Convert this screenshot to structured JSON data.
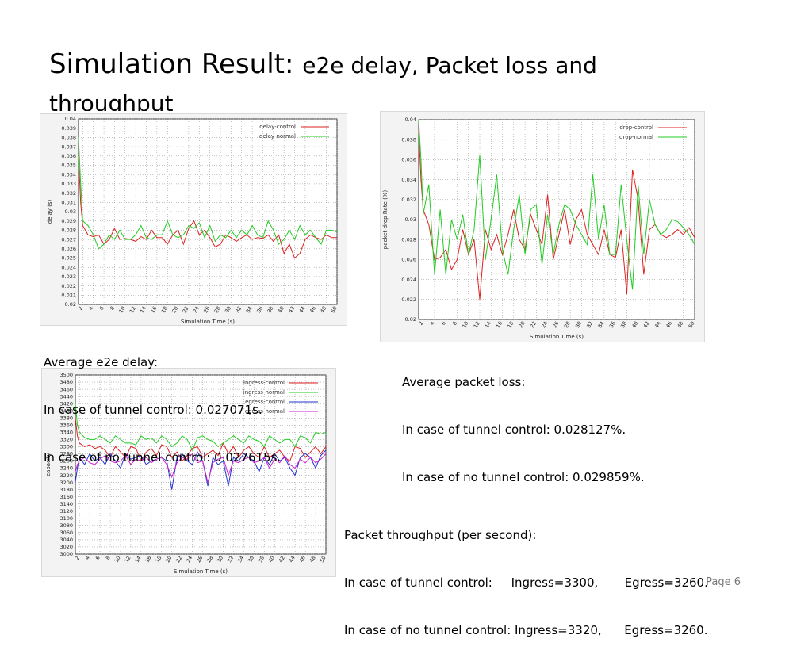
{
  "slide": {
    "title_main": "Simulation Result:",
    "title_sub": "e2e delay, Packet loss and throughput",
    "page_label": "Page 6"
  },
  "captions": {
    "delay": [
      "Average e2e delay:",
      "In case of tunnel control: 0.027071s.",
      "In case of no tunnel control: 0.027615s."
    ],
    "loss": [
      "Average packet loss:",
      "In case of tunnel control: 0.028127%.",
      "In case of no tunnel control: 0.029859%."
    ],
    "throughput": [
      "Packet throughput (per second):",
      "In case of tunnel control:     Ingress=3300,       Egress=3260.",
      "In case of no tunnel control: Ingress=3320,      Egress=3260."
    ]
  },
  "chart_data": [
    {
      "type": "line",
      "xlabel": "Simulation Time (s)",
      "ylabel": "delay (s)",
      "xlim": [
        2,
        50
      ],
      "ylim": [
        0.02,
        0.04
      ],
      "yticks": [
        0.02,
        0.021,
        0.022,
        0.023,
        0.024,
        0.025,
        0.026,
        0.027,
        0.028,
        0.029,
        0.03,
        0.031,
        0.032,
        0.033,
        0.034,
        0.035,
        0.036,
        0.037,
        0.038,
        0.039,
        0.04
      ],
      "xticks": [
        2,
        4,
        6,
        8,
        10,
        12,
        14,
        16,
        18,
        20,
        22,
        24,
        26,
        28,
        30,
        32,
        34,
        36,
        38,
        40,
        42,
        44,
        46,
        48,
        50
      ],
      "legend_position": "top-right",
      "series": [
        {
          "name": "delay-control",
          "color": "#dd2222",
          "x": [
            1.2,
            1.6,
            2,
            3,
            4,
            5,
            6,
            7,
            8,
            9,
            10,
            11,
            12,
            13,
            14,
            15,
            16,
            17,
            18,
            19,
            20,
            21,
            22,
            23,
            24,
            25,
            26,
            27,
            28,
            29,
            30,
            31,
            32,
            33,
            34,
            35,
            36,
            37,
            38,
            39,
            40,
            41,
            42,
            43,
            44,
            45,
            46,
            47,
            48,
            49,
            50
          ],
          "values": [
            0.036,
            0.031,
            0.0285,
            0.0275,
            0.0273,
            0.0275,
            0.0265,
            0.027,
            0.0282,
            0.027,
            0.0271,
            0.027,
            0.0268,
            0.0273,
            0.027,
            0.028,
            0.0272,
            0.0272,
            0.0265,
            0.0275,
            0.028,
            0.0265,
            0.0282,
            0.029,
            0.0275,
            0.028,
            0.0272,
            0.0262,
            0.0265,
            0.0275,
            0.0272,
            0.0268,
            0.0272,
            0.0275,
            0.027,
            0.0272,
            0.0271,
            0.0275,
            0.0268,
            0.0275,
            0.0255,
            0.0265,
            0.025,
            0.0255,
            0.027,
            0.0275,
            0.0272,
            0.027,
            0.0275,
            0.0272,
            0.0272
          ]
        },
        {
          "name": "delay-normal",
          "color": "#22cc22",
          "x": [
            1.2,
            1.6,
            2,
            3,
            4,
            5,
            6,
            7,
            8,
            9,
            10,
            11,
            12,
            13,
            14,
            15,
            16,
            17,
            18,
            19,
            20,
            21,
            22,
            23,
            24,
            25,
            26,
            27,
            28,
            29,
            30,
            31,
            32,
            33,
            34,
            35,
            36,
            37,
            38,
            39,
            40,
            41,
            42,
            43,
            44,
            45,
            46,
            47,
            48,
            49,
            50
          ],
          "values": [
            0.038,
            0.033,
            0.029,
            0.0285,
            0.0275,
            0.026,
            0.0265,
            0.0275,
            0.027,
            0.028,
            0.027,
            0.027,
            0.0275,
            0.0285,
            0.0272,
            0.027,
            0.0275,
            0.0275,
            0.029,
            0.0275,
            0.0272,
            0.0275,
            0.0285,
            0.0282,
            0.0288,
            0.0272,
            0.0285,
            0.0268,
            0.0275,
            0.0272,
            0.028,
            0.0272,
            0.028,
            0.0275,
            0.0285,
            0.0275,
            0.0272,
            0.029,
            0.028,
            0.0265,
            0.027,
            0.028,
            0.027,
            0.0285,
            0.0275,
            0.028,
            0.0272,
            0.0265,
            0.028,
            0.028,
            0.0278
          ]
        }
      ]
    },
    {
      "type": "line",
      "xlabel": "Simulation Time (s)",
      "ylabel": "packet-drop Rate (%)",
      "xlim": [
        2,
        50
      ],
      "ylim": [
        0.02,
        0.04
      ],
      "yticks": [
        0.02,
        0.022,
        0.024,
        0.026,
        0.028,
        0.03,
        0.032,
        0.034,
        0.036,
        0.038,
        0.04
      ],
      "xticks": [
        2,
        4,
        6,
        8,
        10,
        12,
        14,
        16,
        18,
        20,
        22,
        24,
        26,
        28,
        30,
        32,
        34,
        36,
        38,
        40,
        42,
        44,
        46,
        48,
        50
      ],
      "legend_position": "top-right",
      "series": [
        {
          "name": "drop-control",
          "color": "#dd2222",
          "x": [
            1.2,
            1.6,
            2,
            3,
            4,
            5,
            6,
            7,
            8,
            9,
            10,
            11,
            12,
            13,
            14,
            15,
            16,
            17,
            18,
            19,
            20,
            21,
            22,
            23,
            24,
            25,
            26,
            27,
            28,
            29,
            30,
            31,
            32,
            33,
            34,
            35,
            36,
            37,
            38,
            39,
            40,
            41,
            42,
            43,
            44,
            45,
            46,
            47,
            48,
            49,
            50
          ],
          "values": [
            0.039,
            0.034,
            0.031,
            0.0295,
            0.026,
            0.0262,
            0.027,
            0.025,
            0.026,
            0.029,
            0.0265,
            0.028,
            0.022,
            0.029,
            0.027,
            0.0285,
            0.0265,
            0.0285,
            0.031,
            0.028,
            0.027,
            0.0305,
            0.029,
            0.0275,
            0.0325,
            0.026,
            0.0285,
            0.031,
            0.0275,
            0.03,
            0.031,
            0.0285,
            0.0275,
            0.0265,
            0.029,
            0.0265,
            0.0262,
            0.029,
            0.0225,
            0.035,
            0.032,
            0.0245,
            0.029,
            0.0295,
            0.0285,
            0.0282,
            0.0285,
            0.029,
            0.0285,
            0.0292,
            0.0282
          ]
        },
        {
          "name": "drop-normal",
          "color": "#22cc22",
          "x": [
            1.2,
            1.6,
            2,
            3,
            4,
            5,
            6,
            7,
            8,
            9,
            10,
            11,
            12,
            13,
            14,
            15,
            16,
            17,
            18,
            19,
            20,
            21,
            22,
            23,
            24,
            25,
            26,
            27,
            28,
            29,
            30,
            31,
            32,
            33,
            34,
            35,
            36,
            37,
            38,
            39,
            40,
            41,
            42,
            43,
            44,
            45,
            46,
            47,
            48,
            49,
            50
          ],
          "values": [
            0.04,
            0.036,
            0.0305,
            0.0335,
            0.0245,
            0.031,
            0.0245,
            0.03,
            0.028,
            0.0305,
            0.0265,
            0.029,
            0.0365,
            0.026,
            0.03,
            0.0345,
            0.027,
            0.0245,
            0.029,
            0.0325,
            0.0265,
            0.031,
            0.0315,
            0.0255,
            0.0305,
            0.0265,
            0.0295,
            0.0315,
            0.031,
            0.0295,
            0.0285,
            0.0275,
            0.0345,
            0.028,
            0.0315,
            0.0265,
            0.0265,
            0.0335,
            0.028,
            0.023,
            0.0335,
            0.0265,
            0.032,
            0.0295,
            0.0285,
            0.029,
            0.03,
            0.0298,
            0.0292,
            0.0285,
            0.0275
          ]
        }
      ]
    },
    {
      "type": "line",
      "xlabel": "Simulation Time (s)",
      "ylabel": "capacity",
      "xlim": [
        2,
        50
      ],
      "ylim": [
        3000,
        3500
      ],
      "yticks": [
        3000,
        3020,
        3040,
        3060,
        3080,
        3100,
        3120,
        3140,
        3160,
        3180,
        3200,
        3220,
        3240,
        3260,
        3280,
        3300,
        3320,
        3340,
        3360,
        3380,
        3400,
        3420,
        3440,
        3460,
        3480,
        3500
      ],
      "xticks": [
        2,
        4,
        6,
        8,
        10,
        12,
        14,
        16,
        18,
        20,
        22,
        24,
        26,
        28,
        30,
        32,
        34,
        36,
        38,
        40,
        42,
        44,
        46,
        48,
        50
      ],
      "legend_position": "top-right",
      "series": [
        {
          "name": "ingress-control",
          "color": "#dd2222",
          "x": [
            1.2,
            1.6,
            2,
            3,
            4,
            5,
            6,
            7,
            8,
            9,
            10,
            11,
            12,
            13,
            14,
            15,
            16,
            17,
            18,
            19,
            20,
            21,
            22,
            23,
            24,
            25,
            26,
            27,
            28,
            29,
            30,
            31,
            32,
            33,
            34,
            35,
            36,
            37,
            38,
            39,
            40,
            41,
            42,
            43,
            44,
            45,
            46,
            47,
            48,
            49,
            50
          ],
          "values": [
            3380,
            3330,
            3310,
            3300,
            3305,
            3295,
            3300,
            3290,
            3270,
            3300,
            3285,
            3270,
            3300,
            3295,
            3260,
            3285,
            3295,
            3275,
            3305,
            3300,
            3270,
            3285,
            3260,
            3275,
            3295,
            3300,
            3270,
            3280,
            3290,
            3275,
            3310,
            3280,
            3300,
            3270,
            3290,
            3300,
            3280,
            3270,
            3300,
            3270,
            3280,
            3290,
            3270,
            3260,
            3300,
            3295,
            3270,
            3285,
            3300,
            3280,
            3300
          ]
        },
        {
          "name": "ingress-normal",
          "color": "#22cc22",
          "x": [
            1.2,
            1.6,
            2,
            3,
            4,
            5,
            6,
            7,
            8,
            9,
            10,
            11,
            12,
            13,
            14,
            15,
            16,
            17,
            18,
            19,
            20,
            21,
            22,
            23,
            24,
            25,
            26,
            27,
            28,
            29,
            30,
            31,
            32,
            33,
            34,
            35,
            36,
            37,
            38,
            39,
            40,
            41,
            42,
            43,
            44,
            45,
            46,
            47,
            48,
            49,
            50
          ],
          "values": [
            3420,
            3360,
            3340,
            3325,
            3320,
            3320,
            3330,
            3320,
            3310,
            3330,
            3320,
            3310,
            3310,
            3305,
            3330,
            3320,
            3325,
            3310,
            3330,
            3320,
            3300,
            3310,
            3330,
            3320,
            3290,
            3325,
            3330,
            3320,
            3315,
            3300,
            3310,
            3320,
            3330,
            3320,
            3310,
            3330,
            3320,
            3315,
            3300,
            3330,
            3320,
            3310,
            3320,
            3320,
            3300,
            3330,
            3325,
            3310,
            3340,
            3335,
            3340
          ]
        },
        {
          "name": "egress-control",
          "color": "#2233cc",
          "x": [
            1.2,
            1.6,
            2,
            3,
            4,
            5,
            6,
            7,
            8,
            9,
            10,
            11,
            12,
            13,
            14,
            15,
            16,
            17,
            18,
            19,
            20,
            21,
            22,
            23,
            24,
            25,
            26,
            27,
            28,
            29,
            30,
            31,
            32,
            33,
            34,
            35,
            36,
            37,
            38,
            39,
            40,
            41,
            42,
            43,
            44,
            45,
            46,
            47,
            48,
            49,
            50
          ],
          "values": [
            3200,
            3240,
            3270,
            3250,
            3280,
            3260,
            3270,
            3250,
            3280,
            3260,
            3240,
            3280,
            3265,
            3270,
            3275,
            3250,
            3260,
            3265,
            3270,
            3260,
            3180,
            3270,
            3280,
            3260,
            3250,
            3285,
            3260,
            3190,
            3270,
            3250,
            3260,
            3190,
            3270,
            3260,
            3280,
            3270,
            3260,
            3230,
            3270,
            3250,
            3280,
            3260,
            3270,
            3240,
            3220,
            3270,
            3280,
            3270,
            3240,
            3275,
            3290
          ]
        },
        {
          "name": "egress-normal",
          "color": "#cc22cc",
          "x": [
            1.2,
            1.6,
            2,
            3,
            4,
            5,
            6,
            7,
            8,
            9,
            10,
            11,
            12,
            13,
            14,
            15,
            16,
            17,
            18,
            19,
            20,
            21,
            22,
            23,
            24,
            25,
            26,
            27,
            28,
            29,
            30,
            31,
            32,
            33,
            34,
            35,
            36,
            37,
            38,
            39,
            40,
            41,
            42,
            43,
            44,
            45,
            46,
            47,
            48,
            49,
            50
          ],
          "values": [
            3230,
            3250,
            3260,
            3270,
            3255,
            3250,
            3265,
            3275,
            3260,
            3255,
            3260,
            3275,
            3250,
            3265,
            3260,
            3270,
            3255,
            3265,
            3270,
            3250,
            3215,
            3255,
            3270,
            3265,
            3280,
            3255,
            3260,
            3200,
            3255,
            3265,
            3270,
            3220,
            3260,
            3255,
            3265,
            3270,
            3255,
            3260,
            3270,
            3240,
            3265,
            3255,
            3275,
            3250,
            3240,
            3265,
            3255,
            3270,
            3255,
            3265,
            3280
          ]
        }
      ]
    }
  ]
}
